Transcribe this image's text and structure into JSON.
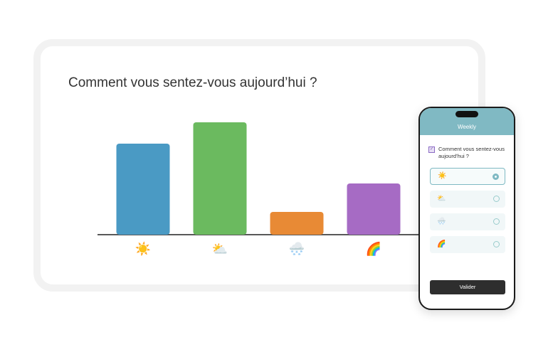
{
  "chart_data": {
    "type": "bar",
    "title": "Comment vous sentez-vous aujourd’hui ?",
    "categories": [
      "☀️",
      "⛅",
      "🌨️",
      "🌈"
    ],
    "series": [
      {
        "colors": [
          "#4a9ac4",
          "#6bba5f",
          "#e88a35",
          "#a66bc4"
        ],
        "values": [
          128,
          158,
          32,
          72
        ]
      }
    ],
    "ylim": [
      0,
      160
    ]
  },
  "phone": {
    "header": "Weekly",
    "question": "Comment vous sentez-vous aujourd’hui ?",
    "options": [
      "☀️",
      "⛅",
      "🌨️",
      "🌈"
    ],
    "button": "Valider"
  }
}
